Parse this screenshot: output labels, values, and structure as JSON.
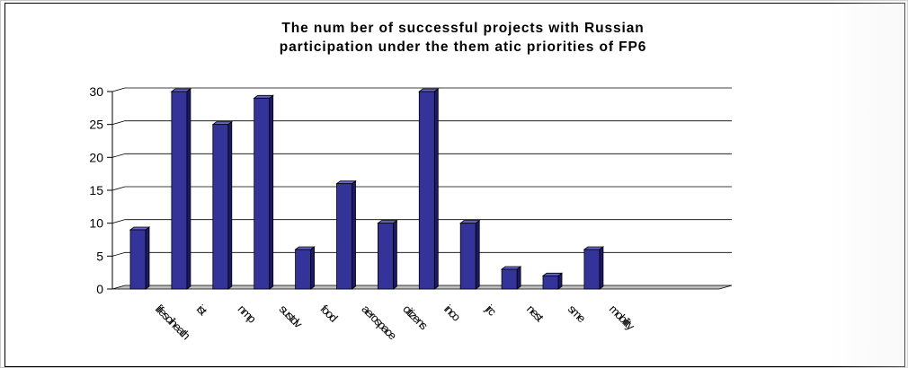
{
  "chart_data": {
    "type": "bar",
    "title_lines": [
      "The num ber of successful projects with Russian",
      "participation under the them atic priorities of FP6"
    ],
    "categories": [
      "lifesciheath",
      "ist",
      "nmp",
      "sustdv",
      "food",
      "aerospace",
      "citizens",
      "inco",
      "jrc",
      "nest",
      "sme",
      "mobility"
    ],
    "values": [
      9,
      30,
      25,
      29,
      6,
      16,
      10,
      30,
      10,
      3,
      2,
      6
    ],
    "ylim": [
      0,
      30
    ],
    "yticks": [
      "0",
      "5",
      "10",
      "15",
      "20",
      "25",
      "30"
    ],
    "bar_color": "#333399",
    "grid": true,
    "legend": "none",
    "xlabel": "",
    "ylabel": ""
  }
}
